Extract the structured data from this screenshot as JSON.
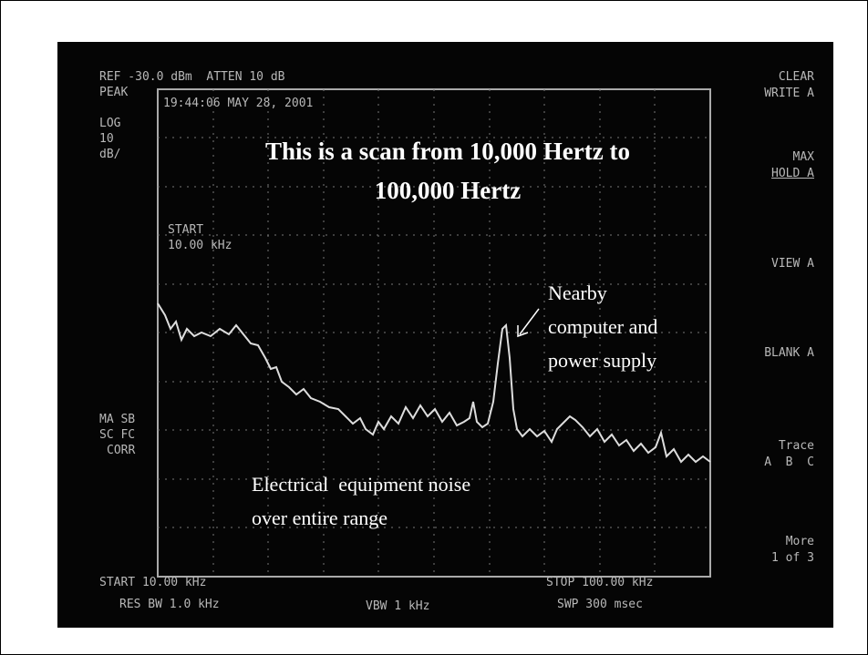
{
  "screen": {
    "header": [
      "REF -30.0 dBm  ATTEN 10 dB",
      "PEAK",
      "19:44:06 MAY 28, 2001"
    ],
    "scale": [
      "LOG",
      "10",
      "dB/"
    ],
    "start_marker": [
      "START",
      "10.00 kHz"
    ],
    "status": [
      "MA SB",
      "SC FC",
      "CORR"
    ],
    "softkeys": [
      [
        "CLEAR",
        "WRITE A"
      ],
      [
        "MAX",
        "HOLD A"
      ],
      [
        "VIEW A"
      ],
      [
        "BLANK A"
      ],
      [
        "Trace",
        "A  B  C"
      ],
      [
        "More",
        "1 of 3"
      ]
    ],
    "footer": [
      "START 10.00 kHz",
      "STOP 100.00 kHz",
      "RES BW 1.0 kHz",
      "VBW 1 kHz",
      "SWP 300 msec"
    ]
  },
  "overlay": {
    "title": [
      "This is a scan from 10,000 Hertz to",
      "100,000 Hertz"
    ],
    "peak_note": [
      "Nearby",
      "computer and",
      "power supply"
    ],
    "noise_note": [
      "Electrical  equipment noise",
      "over entire range"
    ]
  }
}
